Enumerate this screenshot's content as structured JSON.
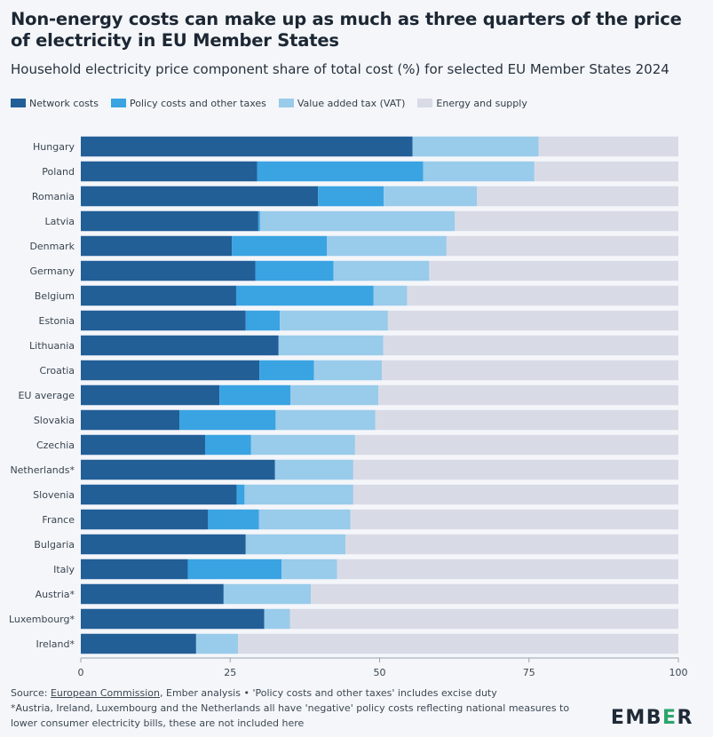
{
  "header": {
    "title": "Non-energy costs can make up as much as three quarters of the price of electricity in EU Member States",
    "subtitle": "Household electricity price component share of total cost (%) for selected EU Member States 2024"
  },
  "legend": [
    {
      "label": "Network costs",
      "color": "#225f97"
    },
    {
      "label": "Policy costs and other taxes",
      "color": "#3aa3e2"
    },
    {
      "label": "Value added tax (VAT)",
      "color": "#99cbeb"
    },
    {
      "label": "Energy and supply",
      "color": "#d8dbe5"
    }
  ],
  "footer": {
    "source_prefix": "Source: ",
    "source_link": "European Commission",
    "source_suffix": ", Ember analysis • 'Policy costs and other taxes' includes excise duty",
    "note": "*Austria, Ireland, Luxembourg and the Netherlands all have 'negative' policy costs reflecting national measures to lower consumer electricity bills, these are not included here"
  },
  "brand": {
    "logo_pre": "EMB",
    "logo_accent": "E",
    "logo_post": "R"
  },
  "chart_data": {
    "type": "bar",
    "orientation": "horizontal",
    "stacked": true,
    "title": "Household electricity price component share of total cost (%) for selected EU Member States 2024",
    "xlim": [
      0,
      100
    ],
    "xticks": [
      0,
      25,
      50,
      75,
      100
    ],
    "categories": [
      "Hungary",
      "Poland",
      "Romania",
      "Latvia",
      "Denmark",
      "Germany",
      "Belgium",
      "Estonia",
      "Lithuania",
      "Croatia",
      "EU average",
      "Slovakia",
      "Czechia",
      "Netherlands*",
      "Slovenia",
      "France",
      "Bulgaria",
      "Italy",
      "Austria*",
      "Luxembourg*",
      "Ireland*"
    ],
    "series": [
      {
        "name": "Network costs",
        "color": "#225f97",
        "values": [
          55.5,
          29.5,
          39.7,
          29.7,
          25.3,
          29.2,
          26.0,
          27.6,
          33.1,
          29.9,
          23.2,
          16.5,
          20.8,
          32.5,
          26.1,
          21.3,
          27.6,
          17.9,
          23.9,
          30.7,
          19.3
        ]
      },
      {
        "name": "Policy costs and other taxes",
        "color": "#3aa3e2",
        "values": [
          0,
          27.8,
          11.0,
          0.3,
          15.9,
          13.1,
          23.0,
          5.7,
          0,
          9.1,
          11.9,
          16.1,
          7.7,
          0,
          1.3,
          8.5,
          0,
          15.7,
          0,
          0,
          0
        ]
      },
      {
        "name": "Value added tax (VAT)",
        "color": "#99cbeb",
        "values": [
          21.1,
          18.6,
          15.6,
          32.6,
          20.0,
          16.0,
          5.6,
          18.1,
          17.5,
          11.4,
          14.7,
          16.7,
          17.4,
          13.1,
          18.2,
          15.3,
          16.7,
          9.3,
          14.6,
          4.3,
          7.0
        ]
      },
      {
        "name": "Energy and supply",
        "color": "#d8dbe5",
        "values": [
          23.4,
          24.1,
          33.7,
          37.4,
          38.8,
          41.7,
          45.4,
          48.6,
          49.4,
          49.6,
          50.2,
          50.7,
          54.1,
          54.4,
          54.4,
          54.9,
          55.7,
          57.1,
          61.5,
          65.0,
          73.7
        ]
      }
    ]
  }
}
